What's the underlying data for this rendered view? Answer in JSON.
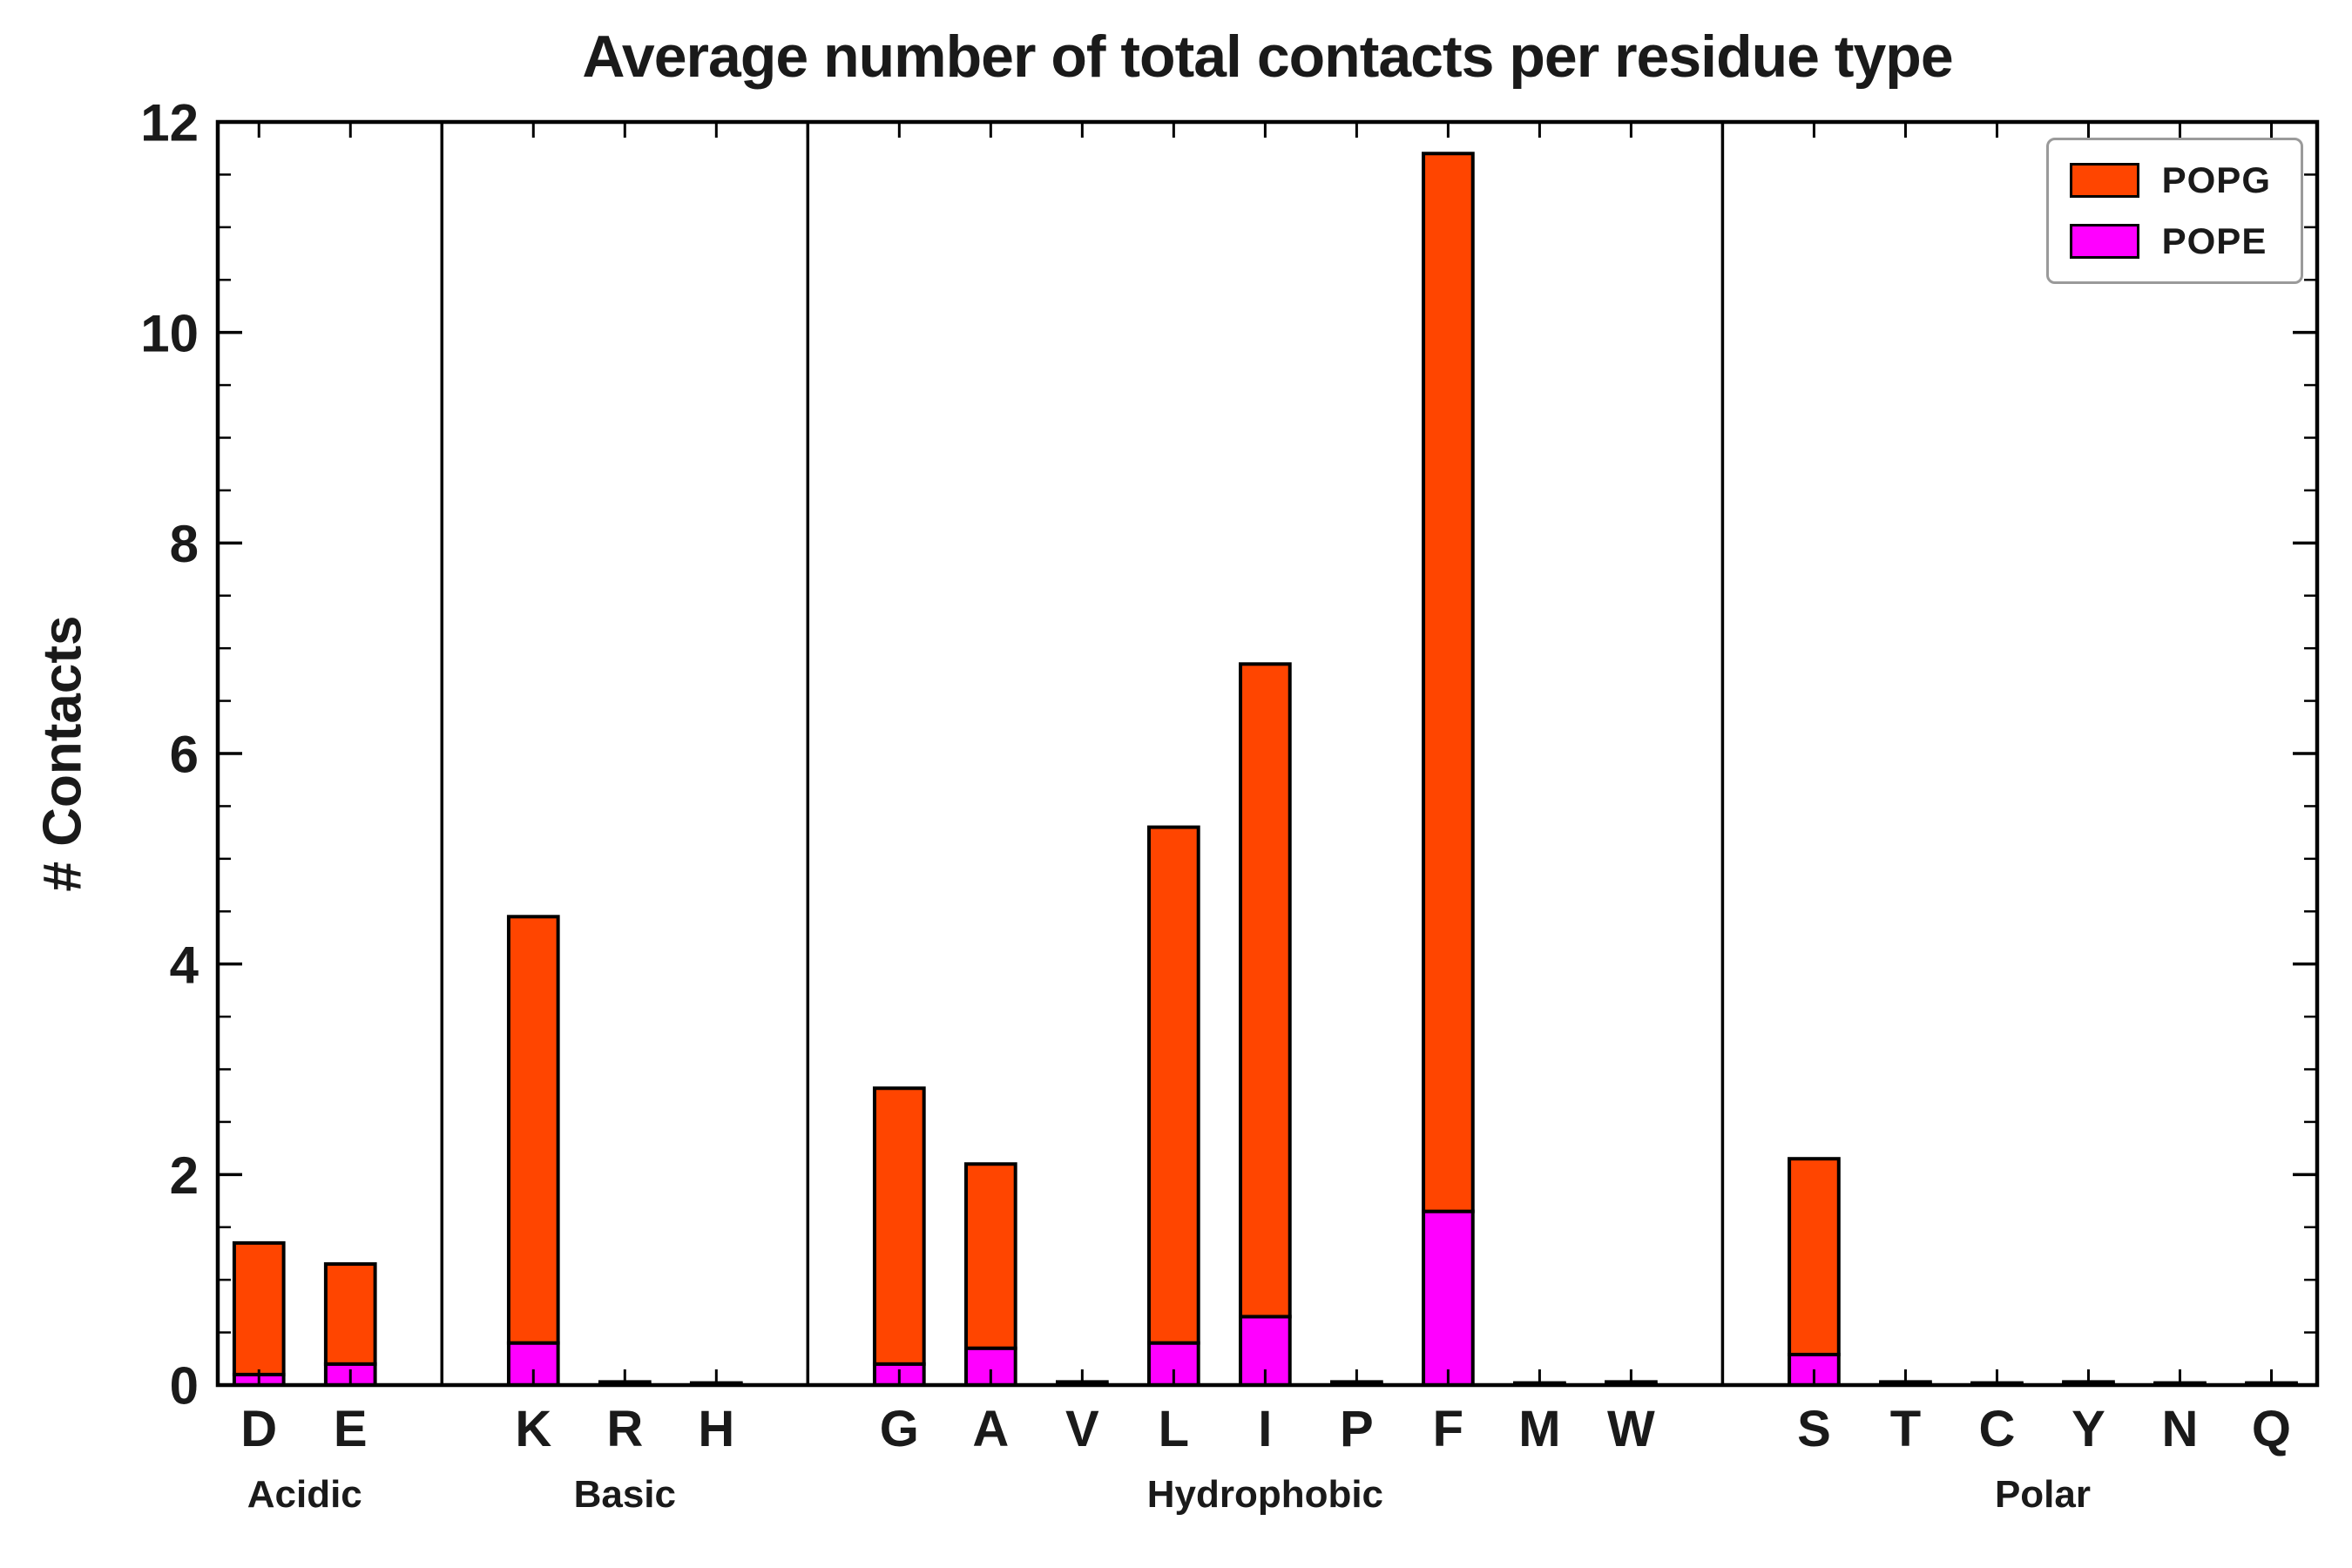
{
  "chart_data": {
    "type": "bar",
    "stacked": true,
    "title": "Average number of total contacts per residue type",
    "ylabel": "# Contacts",
    "xlabel": "",
    "ylim": [
      0,
      12
    ],
    "yticks": [
      0,
      2,
      4,
      6,
      8,
      10,
      12
    ],
    "minor_tick_step": 0.5,
    "grid": false,
    "legend_position": "upper right",
    "groups": [
      {
        "label": "Acidic",
        "categories": [
          "D",
          "E"
        ]
      },
      {
        "label": "Basic",
        "categories": [
          "K",
          "R",
          "H"
        ]
      },
      {
        "label": "Hydrophobic",
        "categories": [
          "G",
          "A",
          "V",
          "L",
          "I",
          "P",
          "F",
          "M",
          "W"
        ]
      },
      {
        "label": "Polar",
        "categories": [
          "S",
          "T",
          "C",
          "Y",
          "N",
          "Q"
        ]
      }
    ],
    "categories": [
      "D",
      "E",
      "K",
      "R",
      "H",
      "G",
      "A",
      "V",
      "L",
      "I",
      "P",
      "F",
      "M",
      "W",
      "S",
      "T",
      "C",
      "Y",
      "N",
      "Q"
    ],
    "series": [
      {
        "name": "POPG",
        "color": "#FF4500",
        "role": "top-segment",
        "values": [
          1.25,
          0.95,
          4.05,
          0.02,
          0.01,
          2.62,
          1.75,
          0.02,
          4.9,
          6.2,
          0.02,
          10.05,
          0.01,
          0.02,
          1.86,
          0.02,
          0.01,
          0.02,
          0.01,
          0.01
        ]
      },
      {
        "name": "POPE",
        "color": "#FF00FF",
        "role": "bottom-segment",
        "values": [
          0.1,
          0.2,
          0.4,
          0.01,
          0.01,
          0.2,
          0.35,
          0.01,
          0.4,
          0.65,
          0.01,
          1.65,
          0.01,
          0.01,
          0.29,
          0.01,
          0.01,
          0.01,
          0.01,
          0.01
        ]
      }
    ]
  }
}
